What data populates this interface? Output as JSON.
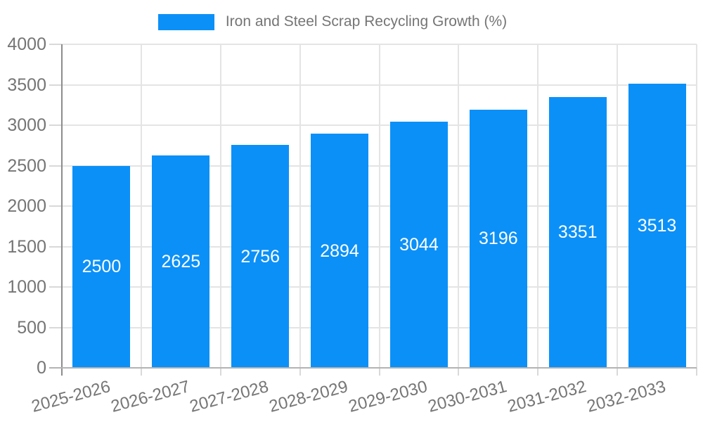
{
  "legend": {
    "label": "Iron and Steel Scrap Recycling Growth (%)"
  },
  "colors": {
    "bar": "#0b90f8",
    "grid": "#e4e4e4",
    "axis_y": "#8c8c8c",
    "axis_x": "#b3b3b3",
    "tick": "#d9d9d9",
    "axis_label": "#757575",
    "legend_text": "#757575",
    "value_label": "#ffffff",
    "background": "#ffffff"
  },
  "chart_data": {
    "type": "bar",
    "title": "Iron and Steel Scrap Recycling Growth (%)",
    "categories": [
      "2025-2026",
      "2026-2027",
      "2027-2028",
      "2028-2029",
      "2029-2030",
      "2030-2031",
      "2031-2032",
      "2032-2033"
    ],
    "values": [
      2500,
      2625,
      2756,
      2894,
      3044,
      3196,
      3351,
      3513
    ],
    "xlabel": "",
    "ylabel": "",
    "ylim": [
      0,
      4000
    ],
    "yticks": [
      0,
      500,
      1000,
      1500,
      2000,
      2500,
      3000,
      3500,
      4000
    ],
    "grid": true,
    "legend_position": "top-center",
    "value_label_position": "inside-middle",
    "x_tick_rotation_deg": -15
  }
}
